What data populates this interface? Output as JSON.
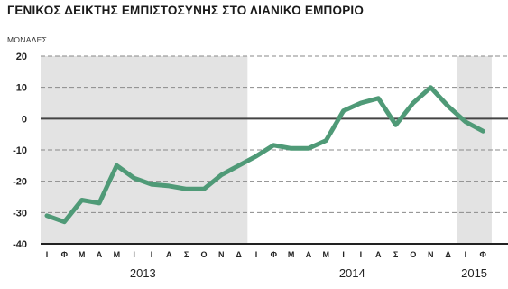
{
  "chart_data": {
    "type": "line",
    "title": "ΓΕΝΙΚΟΣ ΔΕΙΚΤΗΣ ΕΜΠΙΣΤΟΣΥΝΗΣ ΣΤΟ ΛΙΑΝΙΚΟ ΕΜΠΟΡΙΟ",
    "ylabel": "ΜΟΝΑΔΕΣ",
    "ylim": [
      -40,
      20
    ],
    "yticks": [
      20,
      10,
      0,
      -10,
      -20,
      -30,
      -40
    ],
    "grid": "dashed horizontal",
    "series_color": "#4f9a77",
    "zero_line_color": "#444444",
    "shaded_period_color": "#e3e3e3",
    "x_month_labels": [
      "Ι",
      "Φ",
      "Μ",
      "Α",
      "Μ",
      "Ι",
      "Ι",
      "Α",
      "Σ",
      "Ο",
      "Ν",
      "Δ",
      "Ι",
      "Φ",
      "Μ",
      "Α",
      "Μ",
      "Ι",
      "Ι",
      "Α",
      "Σ",
      "Ο",
      "Ν",
      "Δ",
      "Ι",
      "Φ"
    ],
    "years": [
      {
        "label": "2013",
        "start_index": 0,
        "end_index": 11
      },
      {
        "label": "2014",
        "start_index": 12,
        "end_index": 23
      },
      {
        "label": "2015",
        "start_index": 24,
        "end_index": 25
      }
    ],
    "x": [
      "2013-01",
      "2013-02",
      "2013-03",
      "2013-04",
      "2013-05",
      "2013-06",
      "2013-07",
      "2013-08",
      "2013-09",
      "2013-10",
      "2013-11",
      "2013-12",
      "2014-01",
      "2014-02",
      "2014-03",
      "2014-04",
      "2014-05",
      "2014-06",
      "2014-07",
      "2014-08",
      "2014-09",
      "2014-10",
      "2014-11",
      "2014-12",
      "2015-01",
      "2015-02"
    ],
    "values": [
      -31,
      -33,
      -26,
      -27,
      -15,
      -19,
      -21,
      -21.5,
      -22.5,
      -22.5,
      -18,
      -15,
      -12,
      -8.5,
      -9.5,
      -9.5,
      -7,
      2.5,
      5,
      6.5,
      -2,
      5,
      10,
      4,
      -1,
      -4
    ]
  }
}
